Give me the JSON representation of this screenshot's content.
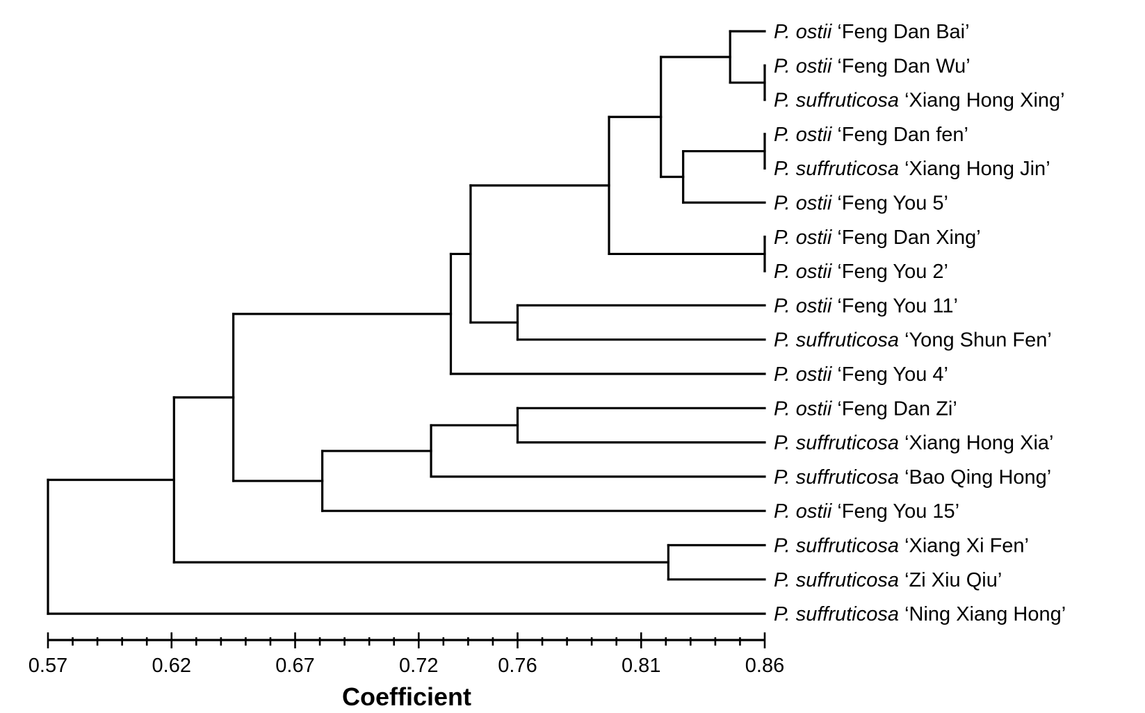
{
  "chart_data": {
    "type": "dendrogram",
    "xlabel": "Coefficient",
    "xlim": [
      0.57,
      0.86
    ],
    "axis_tick_labels": [
      "0.57",
      "0.62",
      "0.67",
      "0.72",
      "0.76",
      "0.81",
      "0.86"
    ],
    "axis_tick_values": [
      0.57,
      0.62,
      0.67,
      0.72,
      0.76,
      0.81,
      0.86
    ],
    "minor_tick_step": 0.01,
    "leaves": [
      {
        "species": "P. ostii",
        "cultivar": "‘Feng Dan Bai’"
      },
      {
        "species": "P. ostii",
        "cultivar": "‘Feng Dan Wu’"
      },
      {
        "species": "P. suffruticosa",
        "cultivar": "‘Xiang Hong Xing’"
      },
      {
        "species": "P. ostii",
        "cultivar": "‘Feng Dan fen’"
      },
      {
        "species": "P. suffruticosa",
        "cultivar": "‘Xiang Hong Jin’"
      },
      {
        "species": "P. ostii",
        "cultivar": "‘Feng You 5’"
      },
      {
        "species": "P. ostii",
        "cultivar": "‘Feng Dan Xing’"
      },
      {
        "species": "P. ostii",
        "cultivar": "‘Feng You 2’"
      },
      {
        "species": "P. ostii",
        "cultivar": "‘Feng You 11’"
      },
      {
        "species": "P. suffruticosa",
        "cultivar": "‘Yong Shun Fen’"
      },
      {
        "species": "P. ostii",
        "cultivar": "‘Feng You 4’"
      },
      {
        "species": "P. ostii",
        "cultivar": "‘Feng Dan Zi’"
      },
      {
        "species": "P. suffruticosa",
        "cultivar": "‘Xiang Hong Xia’"
      },
      {
        "species": "P. suffruticosa",
        "cultivar": "‘Bao Qing Hong’"
      },
      {
        "species": "P. ostii",
        "cultivar": "‘Feng You 15’"
      },
      {
        "species": "P. suffruticosa",
        "cultivar": "‘Xiang Xi Fen’"
      },
      {
        "species": "P. suffruticosa",
        "cultivar": "‘Zi Xiu Qiu’"
      },
      {
        "species": "P. suffruticosa",
        "cultivar": "‘Ning Xiang Hong’"
      }
    ],
    "merges": [
      {
        "children": [
          "L1",
          "L2"
        ],
        "value": 0.86
      },
      {
        "children": [
          "N0",
          "L0"
        ],
        "value": 0.846
      },
      {
        "children": [
          "L3",
          "L4"
        ],
        "value": 0.86
      },
      {
        "children": [
          "N2",
          "L5"
        ],
        "value": 0.827
      },
      {
        "children": [
          "N1",
          "N3"
        ],
        "value": 0.818
      },
      {
        "children": [
          "L6",
          "L7"
        ],
        "value": 0.86
      },
      {
        "children": [
          "N4",
          "N5"
        ],
        "value": 0.797
      },
      {
        "children": [
          "L8",
          "L9"
        ],
        "value": 0.76
      },
      {
        "children": [
          "N6",
          "N7"
        ],
        "value": 0.741
      },
      {
        "children": [
          "N8",
          "L10"
        ],
        "value": 0.733
      },
      {
        "children": [
          "L11",
          "L12"
        ],
        "value": 0.76
      },
      {
        "children": [
          "N10",
          "L13"
        ],
        "value": 0.725
      },
      {
        "children": [
          "N11",
          "L14"
        ],
        "value": 0.681
      },
      {
        "children": [
          "N9",
          "N12"
        ],
        "value": 0.645
      },
      {
        "children": [
          "L15",
          "L16"
        ],
        "value": 0.821
      },
      {
        "children": [
          "N13",
          "N14"
        ],
        "value": 0.621
      },
      {
        "children": [
          "N15",
          "L17"
        ],
        "value": 0.57
      }
    ]
  }
}
